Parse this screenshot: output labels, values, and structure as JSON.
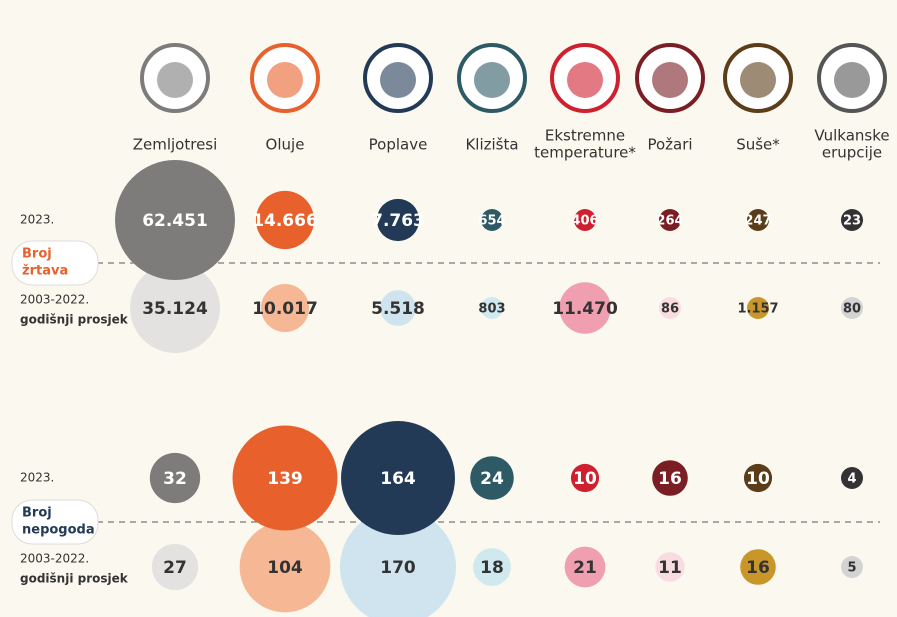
{
  "chart_data": {
    "type": "bubble",
    "categories": [
      [
        "Zemljotresi"
      ],
      [
        "Oluje"
      ],
      [
        "Poplave"
      ],
      [
        "Klizišta"
      ],
      [
        "Ekstremne",
        "temperature*"
      ],
      [
        "Požari"
      ],
      [
        "Suše*"
      ],
      [
        "Vulkanske",
        "erupcije"
      ]
    ],
    "panels": [
      {
        "label": [
          "Broj",
          "žrtava"
        ],
        "color": "#e8612c",
        "rows": [
          {
            "label": [
              "2003-2022.",
              "godišnji prosjek"
            ],
            "text_color": "#333333",
            "colors": [
              "#e3e2e0",
              "#f6b894",
              "#cfe4ee",
              "#cfe9ee",
              "#ef9fb0",
              "#f9dce1",
              "#c9962a",
              "#d3d3d3"
            ],
            "values": [
              35124,
              10017,
              5518,
              803,
              11470,
              86,
              1157,
              80
            ],
            "value_labels": [
              "35.124",
              "10.017",
              "5.518",
              "803",
              "11.470",
              "86",
              "1.157",
              "80"
            ]
          },
          {
            "label": [
              "2023."
            ],
            "text_color": "#ffffff",
            "colors": [
              "#7d7c7b",
              "#e8612c",
              "#233a57",
              "#2e5a66",
              "#cf2030",
              "#7a1e24",
              "#5b3d1a",
              "#333333"
            ],
            "values": [
              62451,
              14666,
              7763,
              654,
              406,
              264,
              247,
              23
            ],
            "value_labels": [
              "62.451",
              "14.666",
              "7.763",
              "654",
              "406",
              "264",
              "247",
              "23"
            ]
          }
        ]
      },
      {
        "label": [
          "Broj",
          "nepogoda"
        ],
        "color": "#233a57",
        "rows": [
          {
            "label": [
              "2003-2022.",
              "godišnji prosjek"
            ],
            "text_color": "#333333",
            "colors": [
              "#e3e2e0",
              "#f6b894",
              "#cfe4ee",
              "#cfe9ee",
              "#ef9fb0",
              "#f9dce1",
              "#c9962a",
              "#d3d3d3"
            ],
            "values": [
              27,
              104,
              170,
              18,
              21,
              11,
              16,
              5
            ]
          },
          {
            "label": [
              "2023."
            ],
            "text_color": "#ffffff",
            "colors": [
              "#7d7c7b",
              "#e8612c",
              "#233a57",
              "#2e5a66",
              "#cf2030",
              "#7a1e24",
              "#5b3d1a",
              "#333333"
            ],
            "values": [
              32,
              139,
              164,
              24,
              10,
              16,
              10,
              4
            ]
          }
        ]
      }
    ]
  }
}
